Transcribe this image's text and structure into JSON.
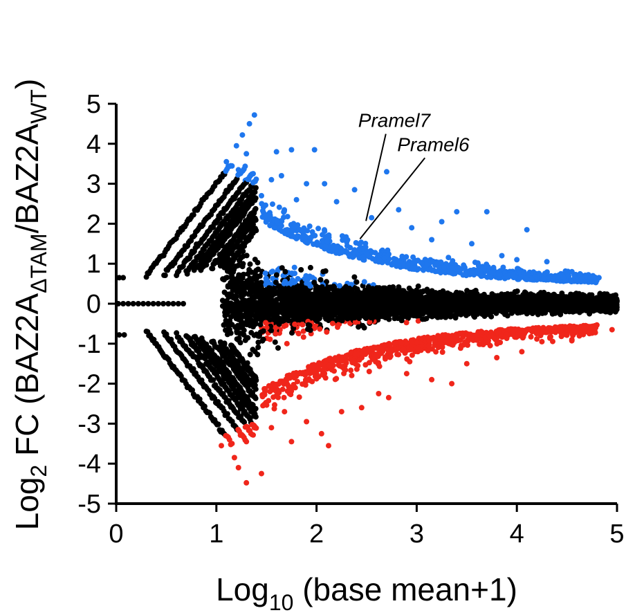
{
  "chart_data": {
    "type": "scatter",
    "title": "",
    "xlabel": {
      "main": "Log",
      "sub": "10",
      "rest": " (base mean+1)"
    },
    "ylabel": {
      "log": "Log",
      "log_sub": "2",
      "fc": " FC (BAZ2A",
      "sub1": "ΔTAM",
      "slash": "/BAZ2A",
      "sub2": "WT",
      "close": ")"
    },
    "xlim": [
      0,
      5
    ],
    "ylim": [
      -5,
      5
    ],
    "xticks": [
      "0",
      "1",
      "2",
      "3",
      "4",
      "5"
    ],
    "yticks": [
      "5",
      "4",
      "3",
      "2",
      "1",
      "0",
      "-1",
      "-2",
      "-3",
      "-4",
      "-5"
    ],
    "grid": false,
    "colors": {
      "up": "#1f77ee",
      "down": "#f0261b",
      "ns": "#000000"
    },
    "annotations": [
      {
        "label": "Pramel7",
        "point": [
          2.48,
          2.0
        ],
        "text_pos": [
          2.54,
          4.35
        ]
      },
      {
        "label": "Pramel6",
        "point": [
          2.42,
          1.55
        ],
        "text_pos": [
          2.93,
          3.75
        ]
      }
    ],
    "highlight_points_up": [
      [
        1.38,
        4.72
      ],
      [
        1.33,
        4.5
      ],
      [
        1.26,
        4.22
      ],
      [
        1.2,
        3.95
      ],
      [
        1.1,
        3.55
      ],
      [
        1.3,
        3.75
      ],
      [
        1.22,
        3.35
      ],
      [
        1.6,
        3.8
      ],
      [
        1.75,
        3.85
      ],
      [
        1.98,
        3.85
      ],
      [
        1.55,
        3.1
      ],
      [
        1.65,
        3.2
      ],
      [
        1.9,
        3.0
      ],
      [
        2.08,
        3.0
      ],
      [
        2.38,
        2.85
      ],
      [
        2.7,
        3.3
      ],
      [
        2.82,
        2.35
      ],
      [
        3.25,
        2.05
      ],
      [
        3.4,
        2.3
      ],
      [
        3.7,
        2.3
      ],
      [
        4.1,
        1.85
      ],
      [
        2.55,
        2.15
      ],
      [
        2.95,
        1.9
      ],
      [
        3.15,
        1.6
      ],
      [
        3.55,
        1.5
      ],
      [
        3.85,
        1.2
      ],
      [
        4.0,
        1.1
      ],
      [
        4.3,
        1.05
      ],
      [
        4.55,
        0.8
      ],
      [
        4.82,
        0.65
      ],
      [
        2.2,
        2.55
      ],
      [
        1.45,
        2.7
      ],
      [
        1.8,
        2.6
      ]
    ],
    "highlight_points_down": [
      [
        1.05,
        -3.55
      ],
      [
        1.18,
        -3.85
      ],
      [
        1.22,
        -4.1
      ],
      [
        1.3,
        -4.48
      ],
      [
        1.45,
        -4.25
      ],
      [
        1.3,
        -3.45
      ],
      [
        1.38,
        -3.1
      ],
      [
        1.55,
        -3.1
      ],
      [
        1.75,
        -3.45
      ],
      [
        1.9,
        -2.95
      ],
      [
        2.05,
        -3.25
      ],
      [
        2.12,
        -3.55
      ],
      [
        2.25,
        -2.7
      ],
      [
        2.45,
        -2.6
      ],
      [
        2.62,
        -2.25
      ],
      [
        2.72,
        -2.35
      ],
      [
        2.9,
        -1.75
      ],
      [
        3.15,
        -1.9
      ],
      [
        3.35,
        -2.0
      ],
      [
        3.5,
        -1.5
      ],
      [
        3.8,
        -1.35
      ],
      [
        4.05,
        -1.2
      ],
      [
        4.25,
        -0.95
      ],
      [
        4.55,
        -0.9
      ],
      [
        4.95,
        -0.65
      ],
      [
        1.68,
        -2.7
      ],
      [
        1.6,
        -2.3
      ]
    ]
  }
}
